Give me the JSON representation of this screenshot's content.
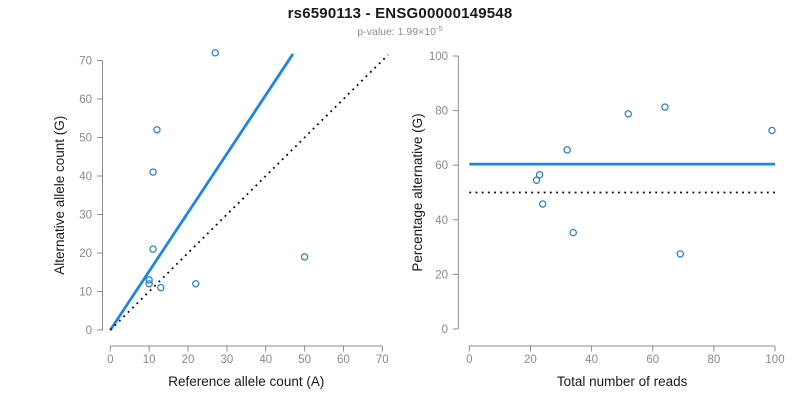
{
  "header": {
    "title": "rs6590113 - ENSG00000149548",
    "p_value_text": "p-value: 1.99×10",
    "p_value_exponent": "-5"
  },
  "colors": {
    "line_blue": "#1e86e5",
    "point_blue": "#2b7ec9",
    "axis_gray": "#8c8c8c",
    "tick_label_gray": "#8a8a8a",
    "axis_title_black": "#1a1a1a",
    "dotted_black": "#000000"
  },
  "chart_data": [
    {
      "type": "scatter",
      "id": "left",
      "xlabel": "Reference allele count (A)",
      "ylabel": "Alternative allele count (G)",
      "xlim": [
        0,
        70
      ],
      "ylim": [
        0,
        70
      ],
      "xticks": [
        0,
        10,
        20,
        30,
        40,
        50,
        60,
        70
      ],
      "yticks": [
        0,
        10,
        20,
        30,
        40,
        50,
        60,
        70
      ],
      "grid": false,
      "point_style": "open-circle",
      "points": [
        [
          10,
          12
        ],
        [
          10,
          13
        ],
        [
          11,
          21
        ],
        [
          11,
          41
        ],
        [
          12,
          52
        ],
        [
          13,
          11
        ],
        [
          22,
          12
        ],
        [
          27,
          72
        ],
        [
          50,
          19
        ]
      ],
      "lines": [
        {
          "name": "fit-line",
          "style": "solid",
          "color": "#1e86e5",
          "note": "regression through origin, slope 1.52",
          "x1": 0,
          "y1": 0,
          "x2": 47,
          "y2": 71.7
        },
        {
          "name": "identity-line",
          "style": "dotted",
          "color": "#000000",
          "note": "y = x reference",
          "x1": 0,
          "y1": 0,
          "x2": 71.5,
          "y2": 71.5
        }
      ]
    },
    {
      "type": "scatter",
      "id": "right",
      "xlabel": "Total number of reads",
      "ylabel": "Percentage alternative (G)",
      "xlim": [
        0,
        100
      ],
      "ylim": [
        0,
        100
      ],
      "xticks": [
        0,
        20,
        40,
        60,
        80,
        100
      ],
      "yticks": [
        0,
        20,
        40,
        60,
        80,
        100
      ],
      "grid": false,
      "point_style": "open-circle",
      "points": [
        [
          22,
          54.5
        ],
        [
          23,
          56.5
        ],
        [
          24,
          45.8
        ],
        [
          32,
          65.6
        ],
        [
          34,
          35.3
        ],
        [
          52,
          78.8
        ],
        [
          64,
          81.3
        ],
        [
          69,
          27.5
        ],
        [
          99,
          72.7
        ]
      ],
      "lines": [
        {
          "name": "mean-percentage-line",
          "style": "solid",
          "color": "#1e86e5",
          "note": "overall percentage alternative 60.4",
          "x1": 0,
          "y1": 60.4,
          "x2": 100,
          "y2": 60.4
        },
        {
          "name": "fifty-percent-line",
          "style": "dotted",
          "color": "#000000",
          "note": "50% reference",
          "x1": 0,
          "y1": 50,
          "x2": 100,
          "y2": 50
        }
      ]
    }
  ]
}
